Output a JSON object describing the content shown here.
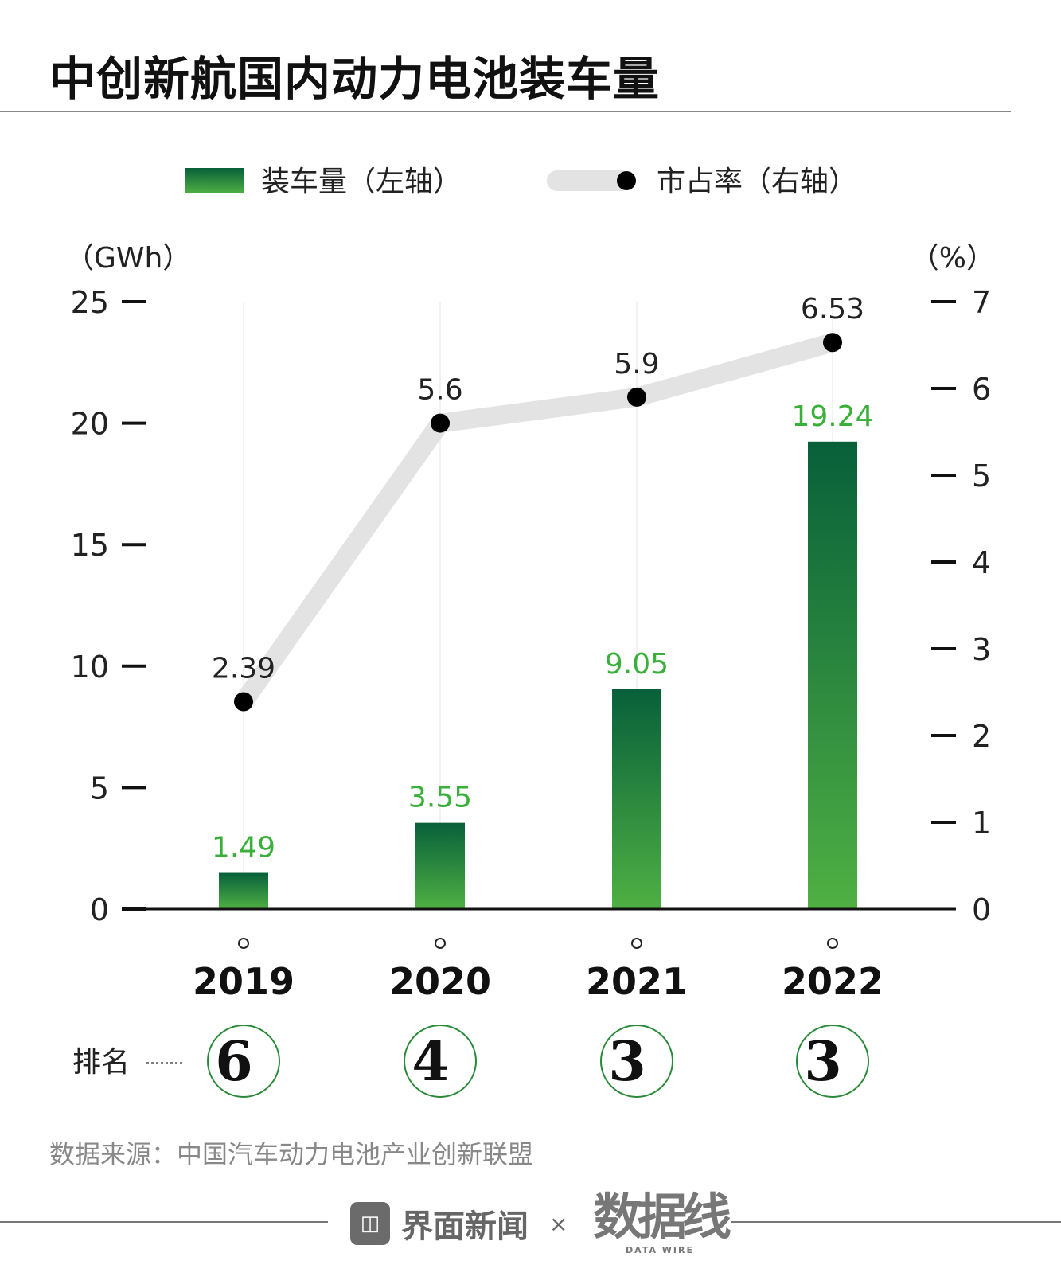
{
  "title": "中创新航国内动力电池装车量",
  "legend": {
    "bar_label": "装车量（左轴）",
    "line_label": "市占率（右轴）"
  },
  "colors": {
    "bar_top": "#07603a",
    "bar_bottom": "#4fb043",
    "bar_value_label": "#3ab03a",
    "line": "#e3e3e3",
    "point": "#000000",
    "rank_ring": "#2a8a3a"
  },
  "chart_data": {
    "type": "bar+line",
    "categories": [
      "2019",
      "2020",
      "2021",
      "2022"
    ],
    "series": [
      {
        "name": "装车量（左轴）",
        "type": "bar",
        "axis": "left",
        "values": [
          1.49,
          3.55,
          9.05,
          19.24
        ],
        "labels": [
          "1.49",
          "3.55",
          "9.05",
          "19.24"
        ]
      },
      {
        "name": "市占率（右轴）",
        "type": "line",
        "axis": "right",
        "values": [
          2.39,
          5.6,
          5.9,
          6.53
        ],
        "labels": [
          "2.39",
          "5.6",
          "5.9",
          "6.53"
        ]
      }
    ],
    "left_axis": {
      "unit": "（GWh）",
      "ylim": [
        0,
        25
      ],
      "ticks": [
        "0",
        "5",
        "10",
        "15",
        "20",
        "25"
      ]
    },
    "right_axis": {
      "unit": "（%）",
      "ylim": [
        0,
        7
      ],
      "ticks": [
        "0",
        "1",
        "2",
        "3",
        "4",
        "5",
        "6",
        "7"
      ]
    },
    "grid": "vertical lines at categories",
    "legend_position": "top"
  },
  "rank": {
    "label": "排名",
    "values": [
      "6",
      "4",
      "3",
      "3"
    ]
  },
  "source": "数据来源：中国汽车动力电池产业创新联盟",
  "footer": {
    "brand_icon": "[回]",
    "brand_name": "界面新闻",
    "separator": "×",
    "partner_logo": "数据线",
    "partner_sub": "DATA WIRE"
  }
}
